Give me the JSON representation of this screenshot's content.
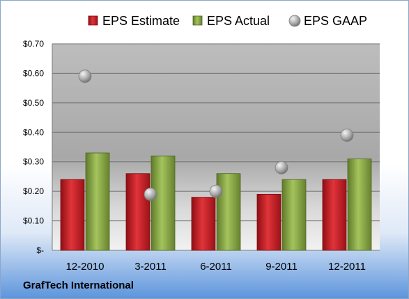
{
  "company": "GrafTech International",
  "colors": {
    "estimate": "#cc1f26",
    "actual": "#8eb04a",
    "gaap": "#a9a9a9"
  },
  "chart_data": {
    "type": "bar",
    "categories": [
      "12-2010",
      "3-2011",
      "6-2011",
      "9-2011",
      "12-2011"
    ],
    "series": [
      {
        "name": "EPS Estimate",
        "values": [
          0.24,
          0.26,
          0.18,
          0.19,
          0.24
        ]
      },
      {
        "name": "EPS Actual",
        "values": [
          0.33,
          0.32,
          0.26,
          0.24,
          0.31
        ]
      },
      {
        "name": "EPS GAAP",
        "type": "scatter",
        "values": [
          0.59,
          0.19,
          0.2,
          0.28,
          0.39
        ]
      }
    ],
    "yticks": [
      "$-",
      "$0.10",
      "$0.20",
      "$0.30",
      "$0.40",
      "$0.50",
      "$0.60",
      "$0.70"
    ],
    "ylim": [
      0,
      0.7
    ],
    "grid": true,
    "legend": "top"
  }
}
